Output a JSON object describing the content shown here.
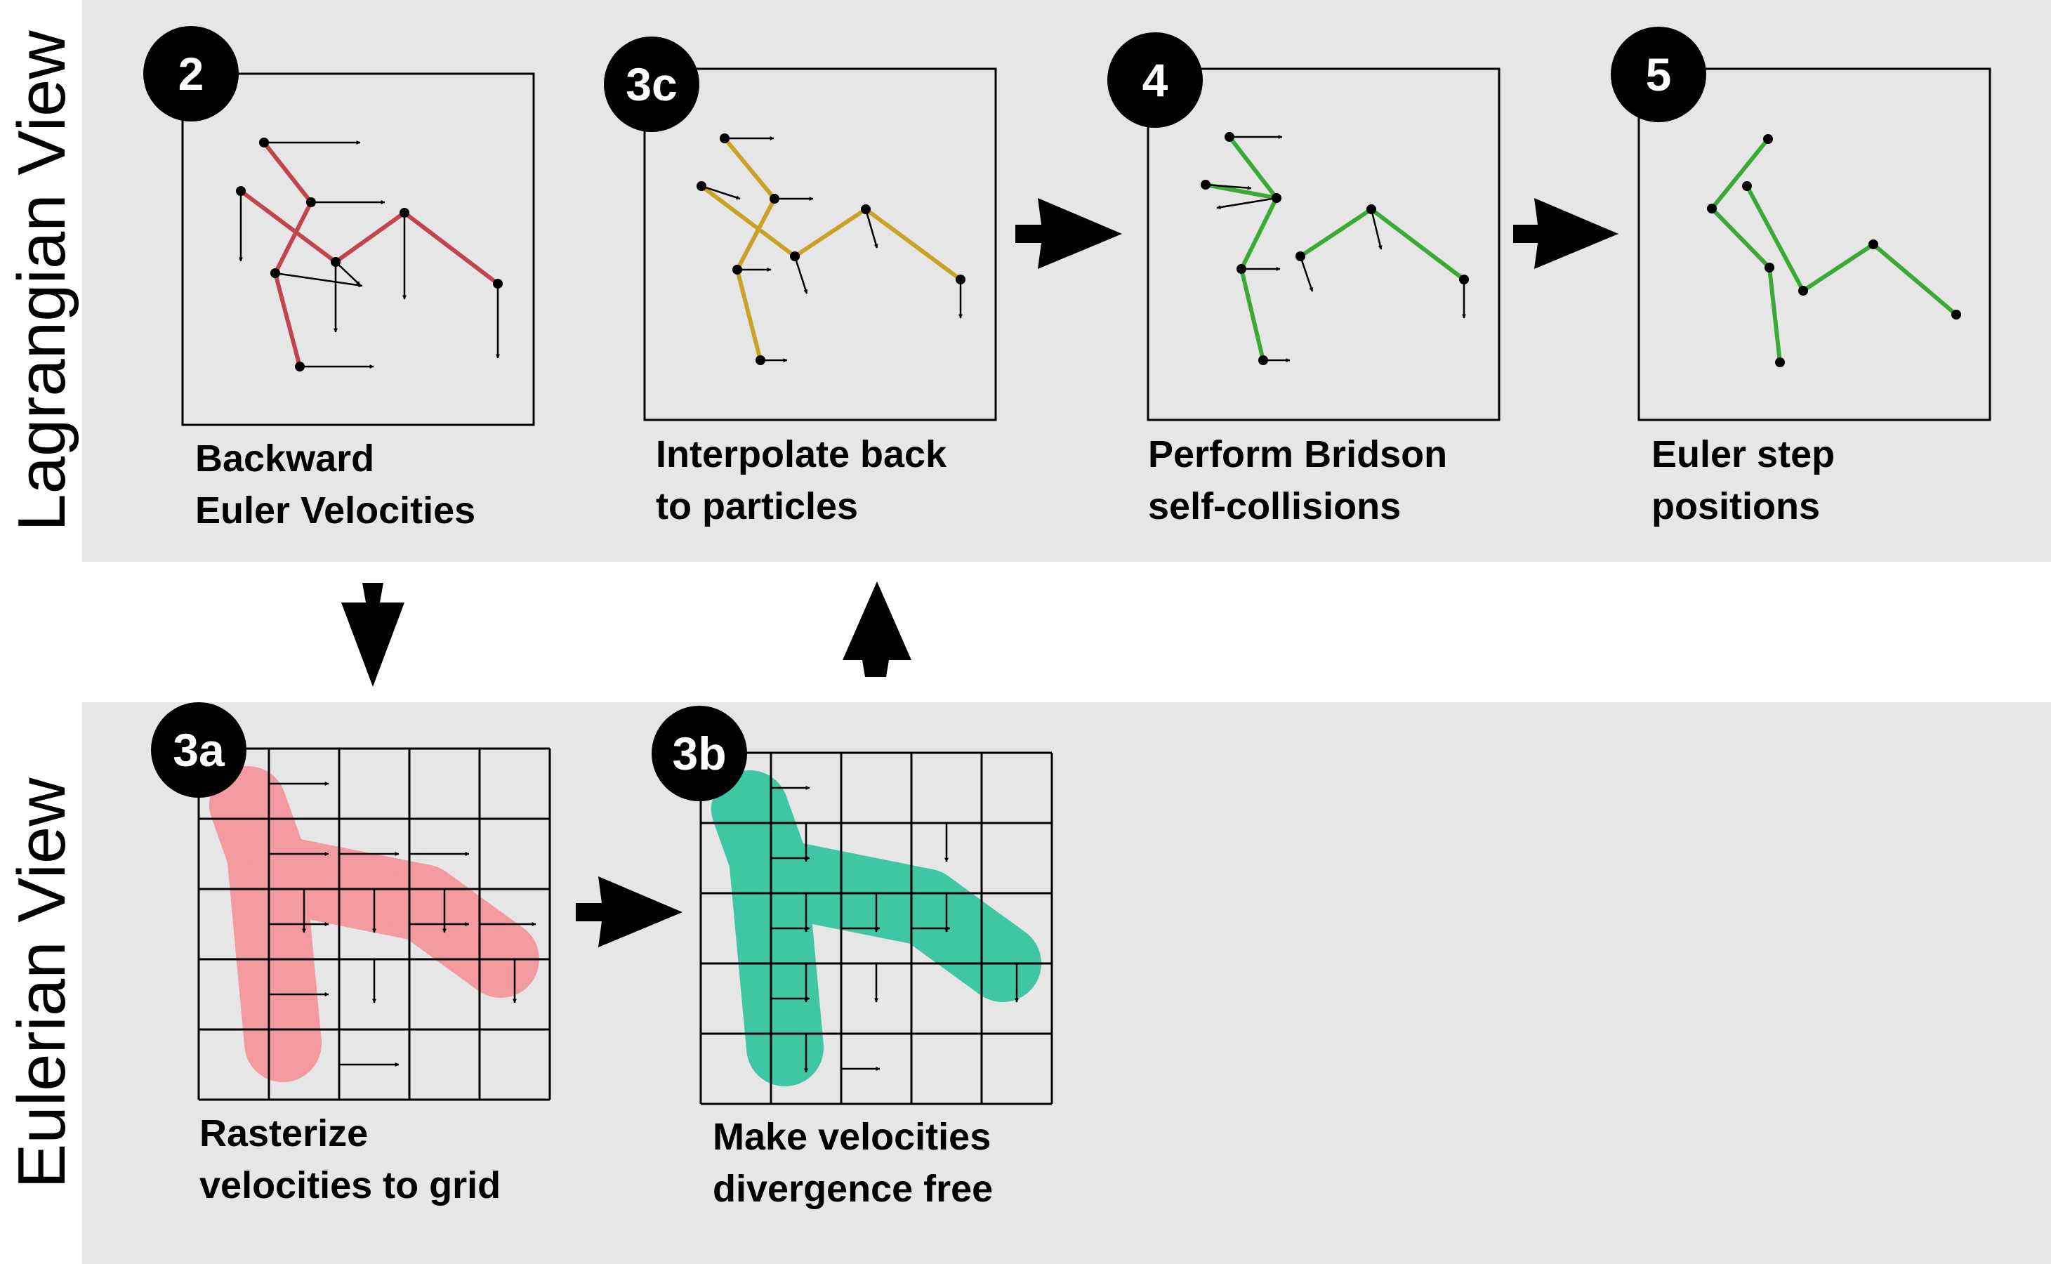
{
  "views": {
    "lagrangian": "Lagrangian View",
    "eulerian": "Eulerian View"
  },
  "steps": [
    {
      "id": "2",
      "line1": "Backward",
      "line2": "Euler Velocities"
    },
    {
      "id": "3c",
      "line1": "Interpolate back",
      "line2": "to particles"
    },
    {
      "id": "4",
      "line1": "Perform Bridson",
      "line2": "self-collisions"
    },
    {
      "id": "5",
      "line1": "Euler step",
      "line2": "positions"
    },
    {
      "id": "3a",
      "line1": "Rasterize",
      "line2": "velocities to grid"
    },
    {
      "id": "3b",
      "line1": "Make velocities",
      "line2": "divergence free"
    }
  ],
  "colors": {
    "panel": "#e6e6e6",
    "red_skeleton": "#c1454f",
    "yellow_skeleton": "#c9a227",
    "green_skeleton": "#3aaa35",
    "pink_blob": "#f29a9f",
    "teal_blob": "#3fc6a3",
    "ink": "#000000"
  }
}
